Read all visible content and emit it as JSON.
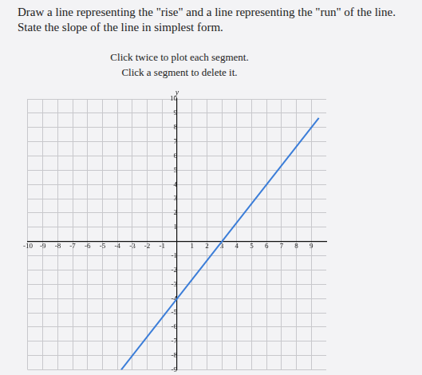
{
  "instructions": {
    "question": "Draw a line representing the \"rise\" and a line representing the \"run\" of the line. State the slope of the line in simplest form.",
    "hints": [
      "Click twice to plot each segment.",
      "Click a segment to delete it."
    ]
  },
  "chart_data": {
    "type": "line",
    "ylabel": "y",
    "x": [
      -3.75,
      9.5
    ],
    "values": [
      -9,
      8.67
    ],
    "color": "#3b7dd8",
    "xlim": [
      -10,
      10
    ],
    "xticks": [
      -10,
      -9,
      -8,
      -7,
      -6,
      -5,
      -4,
      -3,
      -2,
      -1,
      1,
      2,
      3,
      4,
      5,
      6,
      7,
      8,
      9
    ],
    "ylim": [
      -9,
      10
    ],
    "yticks": [
      -9,
      -8,
      -7,
      -6,
      -5,
      -4,
      -3,
      -2,
      -1,
      1,
      2,
      3,
      4,
      5,
      6,
      7,
      8,
      9,
      10
    ],
    "grid": true
  }
}
